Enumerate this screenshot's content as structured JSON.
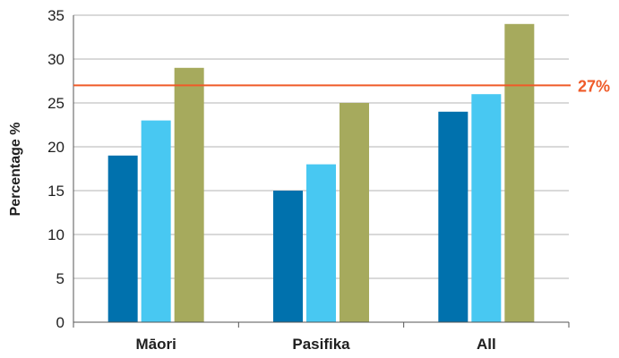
{
  "chart_data": {
    "type": "bar",
    "title": "",
    "xlabel": "",
    "ylabel": "Percentage %",
    "ylim": [
      0,
      35
    ],
    "yticks": [
      0,
      5,
      10,
      15,
      20,
      25,
      30,
      35
    ],
    "grid": true,
    "categories": [
      "Māori",
      "Pasifika",
      "All"
    ],
    "series": [
      {
        "color": "#0071ad",
        "values": [
          19,
          15,
          24
        ]
      },
      {
        "color": "#48c8f2",
        "values": [
          23,
          18,
          26
        ]
      },
      {
        "color": "#a6aa5d",
        "values": [
          29,
          25,
          34
        ]
      }
    ],
    "reference_line": {
      "value": 27,
      "label": "27%",
      "color": "#ef5a28"
    }
  }
}
